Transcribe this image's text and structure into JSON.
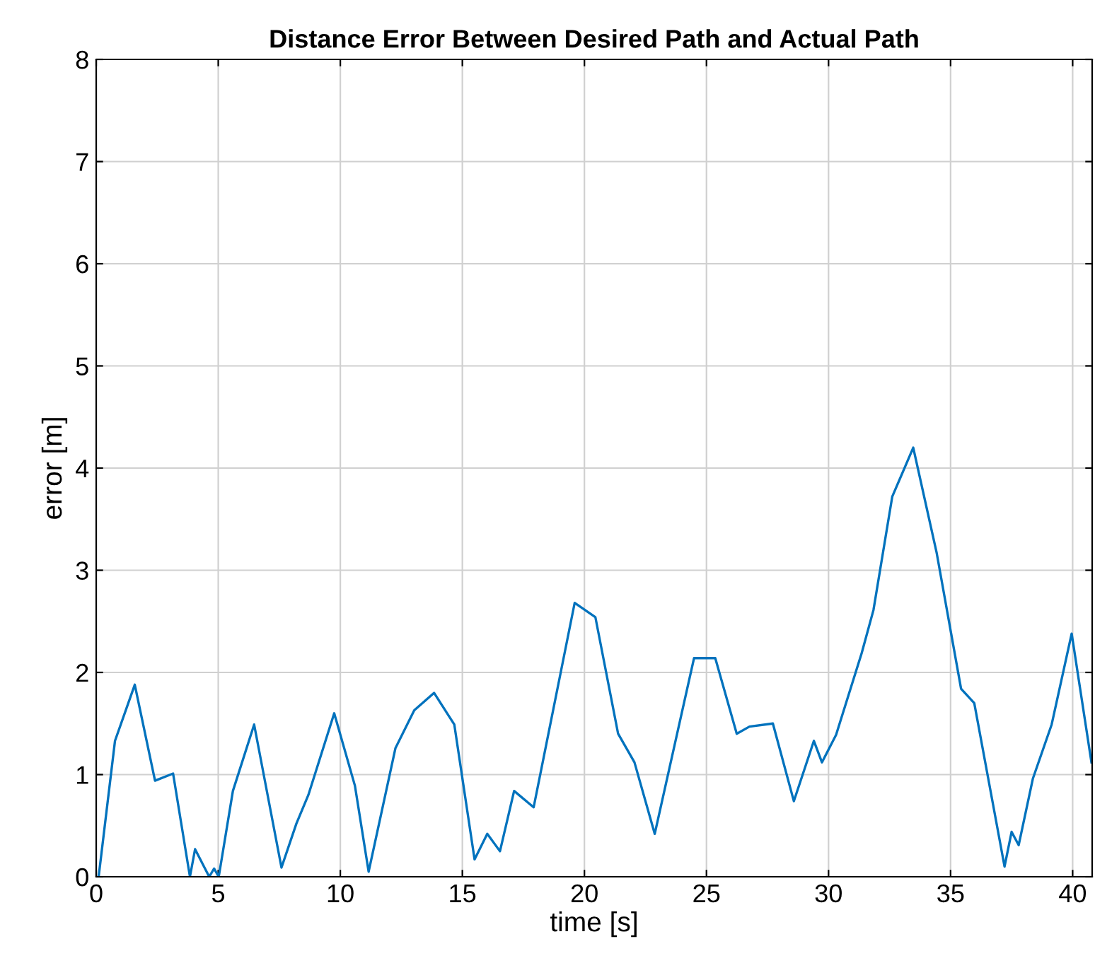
{
  "chart_data": {
    "type": "line",
    "title": "Distance Error Between Desired Path and Actual Path",
    "xlabel": "time [s]",
    "ylabel": "error [m]",
    "x": [
      0.1,
      0.77,
      1.58,
      2.41,
      3.15,
      3.84,
      4.05,
      4.63,
      4.83,
      5.02,
      5.6,
      6.47,
      7.59,
      8.2,
      8.69,
      9.75,
      10.6,
      11.16,
      12.26,
      13.03,
      13.84,
      14.67,
      15.5,
      16.02,
      16.54,
      17.12,
      17.92,
      19.6,
      20.45,
      21.38,
      22.05,
      22.88,
      24.49,
      25.36,
      26.24,
      26.76,
      27.72,
      28.58,
      29.4,
      29.73,
      30.31,
      31.36,
      31.84,
      32.61,
      33.47,
      34.43,
      35.43,
      35.97,
      37.21,
      37.5,
      37.79,
      38.37,
      39.14,
      39.96,
      40.77
    ],
    "series": [
      {
        "color": "#0072bd",
        "values": [
          0,
          1.33,
          1.88,
          0.94,
          1.01,
          0,
          0.27,
          0,
          0.08,
          0,
          0.84,
          1.49,
          0.09,
          0.52,
          0.8,
          1.6,
          0.89,
          0.05,
          1.26,
          1.63,
          1.8,
          1.49,
          0.17,
          0.42,
          0.25,
          0.84,
          0.68,
          2.68,
          2.54,
          1.4,
          1.12,
          0.42,
          2.14,
          2.14,
          1.4,
          1.47,
          1.5,
          0.74,
          1.33,
          1.12,
          1.39,
          2.19,
          2.61,
          3.72,
          4.2,
          3.17,
          1.84,
          1.7,
          0.1,
          0.44,
          0.31,
          0.96,
          1.49,
          2.38,
          1.12
        ]
      }
    ],
    "xlim": [
      0,
      40.8
    ],
    "ylim": [
      0,
      8
    ],
    "xticks": [
      0,
      5,
      10,
      15,
      20,
      25,
      30,
      35,
      40
    ],
    "yticks": [
      0,
      1,
      2,
      3,
      4,
      5,
      6,
      7,
      8
    ],
    "grid": true,
    "line_style": "solid",
    "marker": "none"
  }
}
